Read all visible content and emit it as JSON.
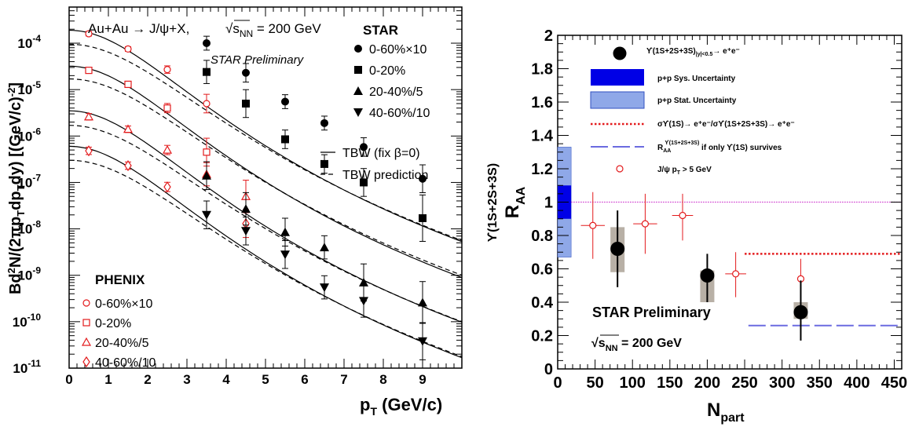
{
  "chart_data": [
    {
      "type": "scatter",
      "title": "Au+Au → J/ψ+X,",
      "energy_label": "√s",
      "energy_sub": "NN",
      "energy_value": " = 200 GeV",
      "watermark": "STAR Preliminary",
      "xlabel": "p",
      "xlabel_sub": "T",
      "xlabel_unit": " (GeV/c)",
      "ylabel": "Bd²N/(2πp_T dp_T dy) [(GeV/c)⁻²]",
      "xlim": [
        0,
        10
      ],
      "ylim": [
        1e-11,
        0.0006
      ],
      "yscale": "log",
      "xticks": [
        "0",
        "1",
        "2",
        "3",
        "4",
        "5",
        "6",
        "7",
        "8",
        "9"
      ],
      "yticks": [
        {
          "base": "10",
          "exp": "-11",
          "value": 1e-11
        },
        {
          "base": "10",
          "exp": "-10",
          "value": 1e-10
        },
        {
          "base": "10",
          "exp": "-9",
          "value": 1e-09
        },
        {
          "base": "10",
          "exp": "-8",
          "value": 1e-08
        },
        {
          "base": "10",
          "exp": "-7",
          "value": 1e-07
        },
        {
          "base": "10",
          "exp": "-6",
          "value": 1e-06
        },
        {
          "base": "10",
          "exp": "-5",
          "value": 1e-05
        },
        {
          "base": "10",
          "exp": "-4",
          "value": 0.0001
        }
      ],
      "legend_star_title": "STAR",
      "legend_phenix_title": "PHENIX",
      "star_series": [
        {
          "name": "0-60%×10",
          "marker": "circle",
          "x": [
            3.5,
            4.5,
            5.5,
            6.5,
            7.5,
            9.0
          ],
          "y": [
            0.0001,
            2.3e-05,
            5.5e-06,
            1.9e-06,
            5.8e-07,
            1.2e-07
          ],
          "err": [
            0.15,
            0.2,
            0.15,
            0.15,
            0.2,
            0.3
          ]
        },
        {
          "name": "0-20%",
          "marker": "square",
          "x": [
            3.5,
            4.5,
            5.5,
            6.5,
            7.5,
            9.0
          ],
          "y": [
            2.4e-05,
            5e-06,
            8.5e-07,
            2.5e-07,
            1e-07,
            1.7e-08
          ],
          "err": [
            0.25,
            0.3,
            0.2,
            0.2,
            0.3,
            0.5
          ]
        },
        {
          "name": "20-40%/5",
          "marker": "triangle-up",
          "x": [
            3.5,
            4.5,
            5.5,
            6.5,
            7.5,
            9.0
          ],
          "y": [
            1.4e-07,
            2.7e-08,
            8.5e-09,
            4e-09,
            7e-10,
            2.6e-10
          ],
          "err": [
            0.3,
            0.35,
            0.3,
            0.25,
            0.4,
            0.45
          ]
        },
        {
          "name": "40-60%/10",
          "marker": "triangle-down",
          "x": [
            3.5,
            4.5,
            5.5,
            6.5,
            7.5,
            9.0
          ],
          "y": [
            2e-08,
            9e-09,
            2.8e-09,
            5.5e-10,
            2.8e-10,
            3.8e-11
          ],
          "err": [
            0.3,
            0.3,
            0.3,
            0.25,
            0.35,
            0.4
          ]
        }
      ],
      "phenix_series": [
        {
          "name": "0-60%×10",
          "marker": "open-circle",
          "x": [
            0.5,
            1.5,
            2.5,
            3.5
          ],
          "y": [
            0.00016,
            7.5e-05,
            2.7e-05,
            5e-06
          ],
          "err": [
            0.05,
            0.05,
            0.08,
            0.2
          ]
        },
        {
          "name": "0-20%",
          "marker": "open-square",
          "x": [
            0.5,
            1.5,
            2.5,
            3.5
          ],
          "y": [
            2.6e-05,
            1.3e-05,
            4e-06,
            4.5e-07
          ],
          "err": [
            0.05,
            0.06,
            0.1,
            0.3
          ]
        },
        {
          "name": "20-40%/5",
          "marker": "open-triangle",
          "x": [
            0.5,
            1.5,
            2.5,
            3.5,
            4.5
          ],
          "y": [
            2.6e-06,
            1.4e-06,
            5e-07,
            1.5e-07,
            5e-08
          ],
          "err": [
            0.07,
            0.07,
            0.1,
            0.25,
            0.35
          ]
        },
        {
          "name": "40-60%/10",
          "marker": "open-diamond",
          "x": [
            0.5,
            1.5,
            2.5,
            4.5
          ],
          "y": [
            4.8e-07,
            2.3e-07,
            8e-08,
            1.3e-08
          ],
          "err": [
            0.08,
            0.08,
            0.1,
            0.3
          ]
        }
      ],
      "curves": {
        "tbw_fix": {
          "name": "TBW (fix β=0)",
          "style": "solid",
          "y0": [
            0.00019,
            3.2e-05,
            3.5e-06,
            6e-07
          ],
          "p0": 2.8
        },
        "tbw_pred": {
          "name": "TBW prediction",
          "style": "dashed",
          "y0": [
            9.5e-05,
            1.7e-05,
            1.7e-06,
            3e-07
          ],
          "p0": 3.1
        }
      },
      "legend_entries": [
        "0-60%×10",
        "0-20%",
        "20-40%/5",
        "40-60%/10"
      ],
      "colors": {
        "phenix": "#e31a1c",
        "star": "#000000"
      }
    },
    {
      "type": "scatter",
      "title": "STAR Preliminary",
      "energy_label": "√s",
      "energy_sub": "NN",
      "energy_value": " = 200 GeV",
      "xlabel": "N",
      "xlabel_sub": "part",
      "ylabel": "R",
      "ylabel_sub": "AA",
      "ylabel_sup": "ϒ(1S+2S+3S)",
      "xlim": [
        0,
        460
      ],
      "ylim": [
        0,
        2
      ],
      "xticks": [
        "0",
        "50",
        "100",
        "150",
        "200",
        "250",
        "300",
        "350",
        "400",
        "450"
      ],
      "yticks": [
        "0",
        "0.2",
        "0.4",
        "0.6",
        "0.8",
        "1",
        "1.2",
        "1.4",
        "1.6",
        "1.8",
        "2"
      ],
      "upsilon_points": {
        "name": "ϒ(1S+2S+3S)",
        "name_sub": "|y|<0.5",
        "name_tail": "→ e⁺e⁻",
        "x": [
          80,
          200,
          325
        ],
        "y": [
          0.72,
          0.56,
          0.34
        ],
        "stat_low": [
          0.49,
          0.4,
          0.17
        ],
        "stat_high": [
          0.95,
          0.69,
          0.53
        ],
        "sys_low": [
          0.58,
          0.4,
          0.3
        ],
        "sys_high": [
          0.85,
          0.59,
          0.4
        ],
        "xerr": [
          5,
          5,
          5
        ]
      },
      "jpsi_points": {
        "name": "J/ψ  p",
        "name_sub": "T",
        "name_tail": " > 5 GeV",
        "x": [
          47,
          80,
          117,
          167,
          238,
          325
        ],
        "y": [
          0.86,
          0.72,
          0.87,
          0.92,
          0.57,
          0.54
        ],
        "err_low": [
          0.2,
          0.22,
          0.18,
          0.15,
          0.14,
          0.2
        ],
        "err_high": [
          0.2,
          0.2,
          0.18,
          0.13,
          0.13,
          0.12
        ],
        "xerr": [
          16,
          0,
          16,
          14,
          14,
          0
        ]
      },
      "pp_sys": {
        "name": "p+p Sys. Uncertainty",
        "low": 0.9,
        "high": 1.1
      },
      "pp_stat": {
        "name": "p+p Stat. Uncertainty",
        "low": 0.67,
        "high": 1.33
      },
      "ratio_line": {
        "name": "σϒ(1S)→ e⁺e⁻/σϒ(1S+2S+3S)→ e⁺e⁻",
        "x": [
          250,
          460
        ],
        "y": 0.69
      },
      "only1s_line": {
        "name_prefix": "R",
        "name_sub": "AA",
        "name_sup": "ϒ(1S+2S+3S)",
        "name_tail": " if only ϒ(1S) survives",
        "x": [
          255,
          460
        ],
        "y": 0.26
      },
      "unity_line": {
        "y": 1.0
      },
      "colors": {
        "sys": "#0000e6",
        "stat": "#8fa8e8",
        "ratio": "#e31a1c",
        "only1s": "#6b6be0",
        "unity": "#cc33cc",
        "jpsi": "#e31a1c",
        "ups": "#000000",
        "box": "#b8b0a6"
      }
    }
  ]
}
